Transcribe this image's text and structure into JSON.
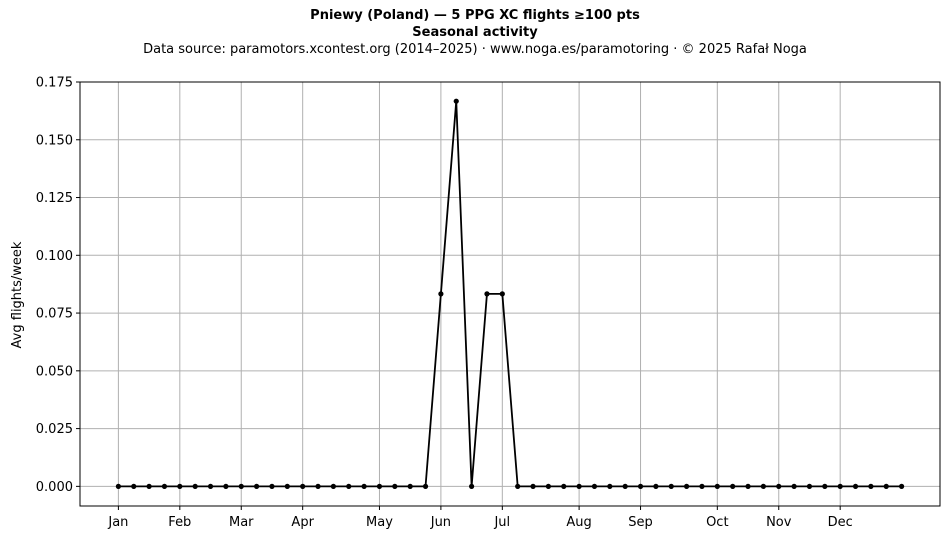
{
  "chart_data": {
    "type": "line",
    "title": "Pniewy (Poland)  —  5 PPG XC flights ≥100 pts",
    "subtitle": "Seasonal activity",
    "source_note": "Data source: paramotors.xcontest.org (2014–2025)  ·  www.noga.es/paramotoring  ·  © 2025 Rafał Noga",
    "xlabel": "",
    "ylabel": "Avg flights/week",
    "xlim": [
      -2.5,
      53.5
    ],
    "ylim": [
      -0.0085,
      0.175
    ],
    "x_ticks": [
      {
        "label": "Jan",
        "week": 0
      },
      {
        "label": "Feb",
        "week": 4
      },
      {
        "label": "Mar",
        "week": 8
      },
      {
        "label": "Apr",
        "week": 12
      },
      {
        "label": "May",
        "week": 17
      },
      {
        "label": "Jun",
        "week": 21
      },
      {
        "label": "Jul",
        "week": 25
      },
      {
        "label": "Aug",
        "week": 30
      },
      {
        "label": "Sep",
        "week": 34
      },
      {
        "label": "Oct",
        "week": 39
      },
      {
        "label": "Nov",
        "week": 43
      },
      {
        "label": "Dec",
        "week": 47
      }
    ],
    "y_ticks": [
      "0.000",
      "0.025",
      "0.050",
      "0.075",
      "0.100",
      "0.125",
      "0.150",
      "0.175"
    ],
    "grid": true,
    "line_color": "#000000",
    "grid_color": "#b0b0b0",
    "x": [
      0,
      1,
      2,
      3,
      4,
      5,
      6,
      7,
      8,
      9,
      10,
      11,
      12,
      13,
      14,
      15,
      16,
      17,
      18,
      19,
      20,
      21,
      22,
      23,
      24,
      25,
      26,
      27,
      28,
      29,
      30,
      31,
      32,
      33,
      34,
      35,
      36,
      37,
      38,
      39,
      40,
      41,
      42,
      43,
      44,
      45,
      46,
      47,
      48,
      49,
      50,
      51
    ],
    "values": [
      0,
      0,
      0,
      0,
      0,
      0,
      0,
      0,
      0,
      0,
      0,
      0,
      0,
      0,
      0,
      0,
      0,
      0,
      0,
      0,
      0,
      0.0833,
      0.1667,
      0,
      0.0833,
      0.0833,
      0,
      0,
      0,
      0,
      0,
      0,
      0,
      0,
      0,
      0,
      0,
      0,
      0,
      0,
      0,
      0,
      0,
      0,
      0,
      0,
      0,
      0,
      0,
      0,
      0,
      0
    ]
  }
}
